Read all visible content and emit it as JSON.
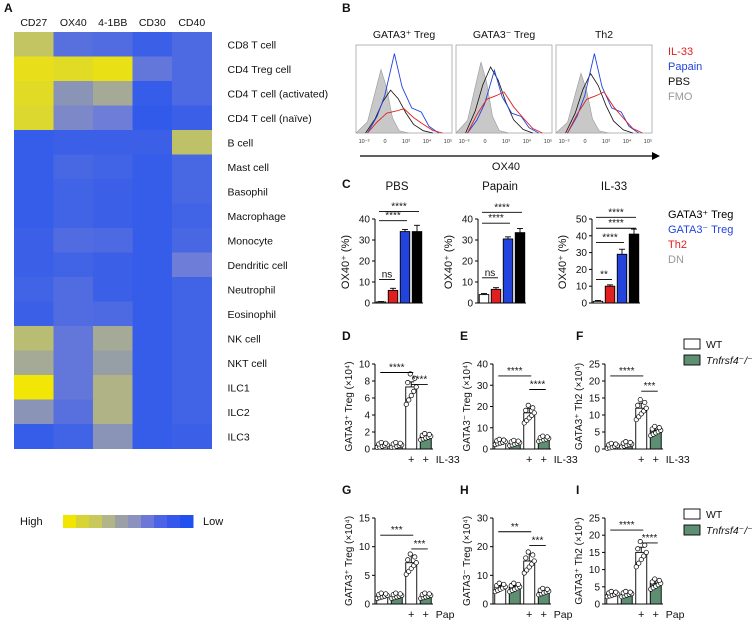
{
  "panels": {
    "A": {
      "letter": "A",
      "columns": [
        "CD27",
        "OX40",
        "4-1BB",
        "CD30",
        "CD40"
      ],
      "rows": [
        "CD8 T cell",
        "CD4 Treg cell",
        "CD4 T cell (activated)",
        "CD4 T cell (naïve)",
        "B cell",
        "Mast cell",
        "Basophil",
        "Macrophage",
        "Monocyte",
        "Dendritic cell",
        "Neutrophil",
        "Eosinophil",
        "NK cell",
        "NKT cell",
        "ILC1",
        "ILC2",
        "ILC3"
      ],
      "values": [
        [
          0.7,
          0.25,
          0.22,
          0.12,
          0.2
        ],
        [
          0.92,
          0.88,
          0.93,
          0.3,
          0.2
        ],
        [
          0.88,
          0.45,
          0.55,
          0.1,
          0.2
        ],
        [
          0.85,
          0.4,
          0.35,
          0.08,
          0.12
        ],
        [
          0.1,
          0.12,
          0.12,
          0.12,
          0.68
        ],
        [
          0.1,
          0.18,
          0.15,
          0.1,
          0.18
        ],
        [
          0.1,
          0.15,
          0.12,
          0.1,
          0.18
        ],
        [
          0.1,
          0.15,
          0.12,
          0.1,
          0.15
        ],
        [
          0.12,
          0.22,
          0.2,
          0.1,
          0.18
        ],
        [
          0.12,
          0.15,
          0.12,
          0.1,
          0.35
        ],
        [
          0.15,
          0.22,
          0.12,
          0.1,
          0.15
        ],
        [
          0.12,
          0.22,
          0.2,
          0.1,
          0.15
        ],
        [
          0.65,
          0.3,
          0.55,
          0.1,
          0.15
        ],
        [
          0.55,
          0.3,
          0.5,
          0.1,
          0.15
        ],
        [
          0.98,
          0.3,
          0.6,
          0.1,
          0.15
        ],
        [
          0.45,
          0.25,
          0.6,
          0.1,
          0.15
        ],
        [
          0.1,
          0.15,
          0.45,
          0.1,
          0.12
        ]
      ],
      "legend_high": "High",
      "legend_low": "Low",
      "legend_colors": [
        "#f2e600",
        "#d9d435",
        "#c9c85a",
        "#b2b48a",
        "#9b9fa6",
        "#8c92c0",
        "#6b78d8",
        "#4d63e6",
        "#3557ec",
        "#2050f0"
      ]
    },
    "B": {
      "letter": "B",
      "plots": [
        {
          "title": "GATA3⁺ Treg",
          "ticks": [
            "10⁻³",
            "0",
            "10³",
            "10⁴",
            "10⁵"
          ]
        },
        {
          "title": "GATA3⁻ Treg",
          "ticks": [
            "10⁻³",
            "0",
            "10³",
            "10⁴",
            "10⁵"
          ]
        },
        {
          "title": "Th2",
          "ticks": [
            "10⁻³",
            "0",
            "10³",
            "10⁴",
            "10⁵"
          ]
        }
      ],
      "axis_label": "OX40",
      "legend": [
        {
          "name": "IL-33",
          "color": "#e02020"
        },
        {
          "name": "Papain",
          "color": "#2244dd"
        },
        {
          "name": "PBS",
          "color": "#111111"
        },
        {
          "name": "FMO",
          "color": "#999999"
        }
      ]
    },
    "C": {
      "letter": "C",
      "ylabel": "OX40⁺ (%)",
      "plots": [
        {
          "title": "PBS",
          "ylim": [
            0,
            40
          ],
          "ticks": [
            0,
            10,
            20,
            30,
            40
          ],
          "values": [
            0.5,
            6,
            34,
            34
          ],
          "errors": [
            0.2,
            1,
            1,
            3
          ],
          "sig": [
            {
              "label": "ns",
              "from": 0,
              "to": 1,
              "level": 0.28
            },
            {
              "label": "****",
              "from": 0,
              "to": 2,
              "level": 0.98
            },
            {
              "label": "****",
              "from": 0,
              "to": 3,
              "level": 1.09
            }
          ]
        },
        {
          "title": "Papain",
          "ylim": [
            0,
            40
          ],
          "ticks": [
            0,
            10,
            20,
            30,
            40
          ],
          "values": [
            4,
            6.5,
            30.5,
            33.5
          ],
          "errors": [
            0.5,
            0.8,
            1,
            2
          ],
          "sig": [
            {
              "label": "ns",
              "from": 0,
              "to": 1,
              "level": 0.3
            },
            {
              "label": "****",
              "from": 0,
              "to": 2,
              "level": 0.95
            },
            {
              "label": "****",
              "from": 0,
              "to": 3,
              "level": 1.08
            }
          ]
        },
        {
          "title": "IL-33",
          "ylim": [
            0,
            50
          ],
          "ticks": [
            0,
            10,
            20,
            30,
            40,
            50
          ],
          "values": [
            1,
            10,
            29,
            41
          ],
          "errors": [
            0.5,
            0.8,
            3,
            3
          ],
          "sig": [
            {
              "label": "**",
              "from": 0,
              "to": 1,
              "level": 0.28
            },
            {
              "label": "****",
              "from": 0,
              "to": 2,
              "level": 0.72
            },
            {
              "label": "****",
              "from": 0,
              "to": 3,
              "level": 0.89
            },
            {
              "label": "****",
              "from": 0,
              "to": 3,
              "level": 1.02
            }
          ]
        }
      ],
      "colors": [
        "#ffffff",
        "#e02020",
        "#2244dd",
        "#000000"
      ],
      "legend": [
        {
          "name": "GATA3⁺ Treg",
          "color": "#000000"
        },
        {
          "name": "GATA3⁻ Treg",
          "color": "#2244dd"
        },
        {
          "name": "Th2",
          "color": "#e02020"
        },
        {
          "name": "DN",
          "color": "#999999"
        }
      ]
    },
    "D": {
      "letter": "D",
      "ylabel": "GATA3⁺ Treg (×10⁴)",
      "ylim": [
        0,
        10
      ],
      "ticks": [
        0,
        2,
        4,
        6,
        8,
        10
      ],
      "values": [
        0.5,
        0.5,
        7.3,
        1.5
      ],
      "errors": [
        0.1,
        0.1,
        0.6,
        0.3
      ],
      "treatment": "IL-33",
      "sig": [
        {
          "label": "****",
          "from": 0,
          "to": 2,
          "level": 0.9
        },
        {
          "label": "****",
          "from": 2,
          "to": 3,
          "level": 0.76
        }
      ]
    },
    "E": {
      "letter": "E",
      "ylabel": "GATA3⁻ Treg (×10⁴)",
      "ylim": [
        0,
        40
      ],
      "ticks": [
        0,
        10,
        20,
        30,
        40
      ],
      "values": [
        3.5,
        3,
        17,
        5
      ],
      "errors": [
        0.5,
        0.5,
        2,
        0.8
      ],
      "treatment": "IL-33",
      "sig": [
        {
          "label": "****",
          "from": 0,
          "to": 2,
          "level": 0.86
        },
        {
          "label": "****",
          "from": 2,
          "to": 3,
          "level": 0.7
        }
      ]
    },
    "F": {
      "letter": "F",
      "ylabel": "GATA3⁺ Th2 (×10⁴)",
      "ylim": [
        0,
        25
      ],
      "ticks": [
        0,
        5,
        10,
        15,
        20,
        25
      ],
      "values": [
        1,
        1.5,
        12,
        5.5
      ],
      "errors": [
        0.2,
        0.3,
        1.5,
        0.8
      ],
      "treatment": "IL-33",
      "sig": [
        {
          "label": "****",
          "from": 0,
          "to": 2,
          "level": 0.86
        },
        {
          "label": "***",
          "from": 2,
          "to": 3,
          "level": 0.68
        }
      ]
    },
    "G": {
      "letter": "G",
      "ylabel": "GATA3⁺ Treg (×10⁴)",
      "ylim": [
        0,
        15
      ],
      "ticks": [
        0,
        5,
        10,
        15
      ],
      "values": [
        1.5,
        1.5,
        7.2,
        1.5
      ],
      "errors": [
        0.2,
        0.2,
        1.3,
        0.3
      ],
      "treatment": "Pap",
      "sig": [
        {
          "label": "***",
          "from": 0,
          "to": 2,
          "level": 0.8
        },
        {
          "label": "***",
          "from": 2,
          "to": 3,
          "level": 0.64
        }
      ]
    },
    "H": {
      "letter": "H",
      "ylabel": "GATA3⁻ Treg (×10⁴)",
      "ylim": [
        0,
        30
      ],
      "ticks": [
        0,
        10,
        20,
        30
      ],
      "values": [
        6,
        6,
        15,
        4.5
      ],
      "errors": [
        0.5,
        0.5,
        2.5,
        0.7
      ],
      "treatment": "Pap",
      "sig": [
        {
          "label": "**",
          "from": 0,
          "to": 2,
          "level": 0.84
        },
        {
          "label": "***",
          "from": 2,
          "to": 3,
          "level": 0.68
        }
      ]
    },
    "I": {
      "letter": "I",
      "ylabel": "GATA3⁺ Th2 (×10⁴)",
      "ylim": [
        0,
        25
      ],
      "ticks": [
        0,
        5,
        10,
        15,
        20,
        25
      ],
      "values": [
        3,
        3,
        15,
        6
      ],
      "errors": [
        0.3,
        0.3,
        1.5,
        0.8
      ],
      "treatment": "Pap",
      "sig": [
        {
          "label": "****",
          "from": 0,
          "to": 2,
          "level": 0.86
        },
        {
          "label": "****",
          "from": 2,
          "to": 3,
          "level": 0.71
        }
      ]
    },
    "legend_wt_ko": [
      {
        "name": "WT",
        "color": "#ffffff"
      },
      {
        "name": "Tnfrsf4⁻/⁻",
        "color": "#5e8f73"
      }
    ],
    "plus": "+"
  },
  "chart_data": [
    {
      "type": "heatmap",
      "title": "",
      "x": [
        "CD27",
        "OX40",
        "4-1BB",
        "CD30",
        "CD40"
      ],
      "y": [
        "CD8 T cell",
        "CD4 Treg cell",
        "CD4 T cell (activated)",
        "CD4 T cell (naïve)",
        "B cell",
        "Mast cell",
        "Basophil",
        "Macrophage",
        "Monocyte",
        "Dendritic cell",
        "Neutrophil",
        "Eosinophil",
        "NK cell",
        "NKT cell",
        "ILC1",
        "ILC2",
        "ILC3"
      ],
      "scale": "High to Low"
    },
    {
      "type": "bar",
      "title": "PBS",
      "categories": [
        "GATA3⁺ Treg",
        "GATA3⁻ Treg",
        "Th2",
        "DN"
      ],
      "ylabel": "OX40⁺ (%)",
      "ylim": [
        0,
        40
      ]
    },
    {
      "type": "bar",
      "title": "Papain",
      "categories": [
        "GATA3⁺ Treg",
        "GATA3⁻ Treg",
        "Th2",
        "DN"
      ],
      "ylabel": "OX40⁺ (%)",
      "ylim": [
        0,
        40
      ]
    },
    {
      "type": "bar",
      "title": "IL-33",
      "categories": [
        "GATA3⁺ Treg",
        "GATA3⁻ Treg",
        "Th2",
        "DN"
      ],
      "ylabel": "OX40⁺ (%)",
      "ylim": [
        0,
        50
      ]
    },
    {
      "type": "bar",
      "panel": "D",
      "series": [
        {
          "name": "WT",
          "values": [
            0.5,
            7.3
          ]
        },
        {
          "name": "Tnfrsf4⁻/⁻",
          "values": [
            0.5,
            1.5
          ]
        }
      ],
      "categories": [
        "-",
        "IL-33"
      ],
      "ylabel": "GATA3⁺ Treg (×10⁴)",
      "ylim": [
        0,
        10
      ]
    },
    {
      "type": "bar",
      "panel": "E",
      "series": [
        {
          "name": "WT",
          "values": [
            3.5,
            17
          ]
        },
        {
          "name": "Tnfrsf4⁻/⁻",
          "values": [
            3,
            5
          ]
        }
      ],
      "categories": [
        "-",
        "IL-33"
      ],
      "ylabel": "GATA3⁻ Treg (×10⁴)",
      "ylim": [
        0,
        40
      ]
    },
    {
      "type": "bar",
      "panel": "F",
      "series": [
        {
          "name": "WT",
          "values": [
            1,
            12
          ]
        },
        {
          "name": "Tnfrsf4⁻/⁻",
          "values": [
            1.5,
            5.5
          ]
        }
      ],
      "categories": [
        "-",
        "IL-33"
      ],
      "ylabel": "GATA3⁺ Th2 (×10⁴)",
      "ylim": [
        0,
        25
      ]
    },
    {
      "type": "bar",
      "panel": "G",
      "series": [
        {
          "name": "WT",
          "values": [
            1.5,
            7.2
          ]
        },
        {
          "name": "Tnfrsf4⁻/⁻",
          "values": [
            1.5,
            1.5
          ]
        }
      ],
      "categories": [
        "-",
        "Pap"
      ],
      "ylabel": "GATA3⁺ Treg (×10⁴)",
      "ylim": [
        0,
        15
      ]
    },
    {
      "type": "bar",
      "panel": "H",
      "series": [
        {
          "name": "WT",
          "values": [
            6,
            15
          ]
        },
        {
          "name": "Tnfrsf4⁻/⁻",
          "values": [
            6,
            4.5
          ]
        }
      ],
      "categories": [
        "-",
        "Pap"
      ],
      "ylabel": "GATA3⁻ Treg (×10⁴)",
      "ylim": [
        0,
        30
      ]
    },
    {
      "type": "bar",
      "panel": "I",
      "series": [
        {
          "name": "WT",
          "values": [
            3,
            15
          ]
        },
        {
          "name": "Tnfrsf4⁻/⁻",
          "values": [
            3,
            6
          ]
        }
      ],
      "categories": [
        "-",
        "Pap"
      ],
      "ylabel": "GATA3⁺ Th2 (×10⁴)",
      "ylim": [
        0,
        25
      ]
    }
  ]
}
